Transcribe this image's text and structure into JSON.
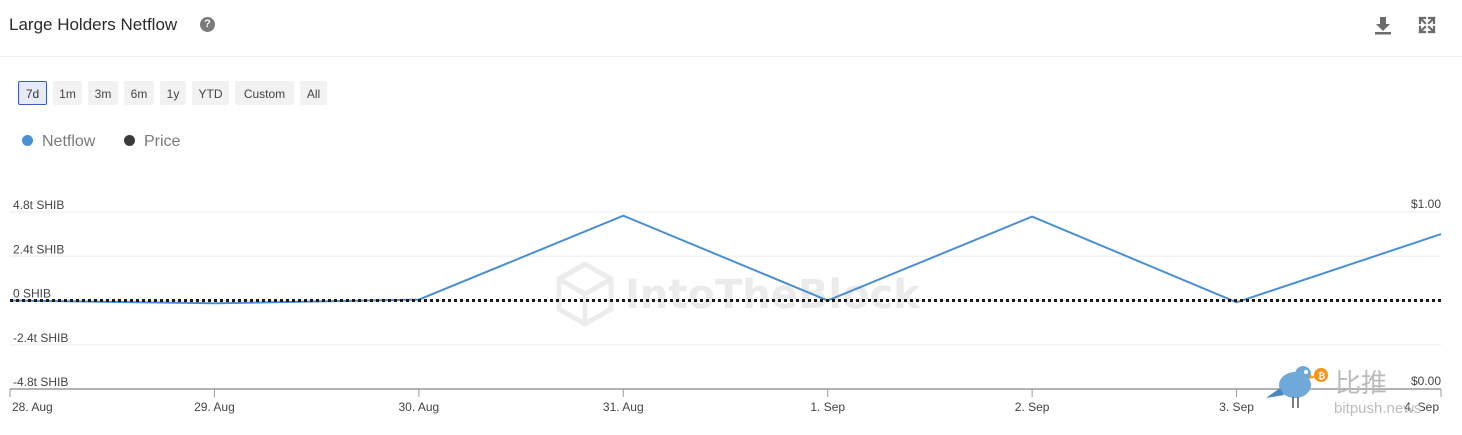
{
  "header": {
    "title": "Large Holders Netflow",
    "help_icon": "question-circle-icon",
    "download_icon": "download-icon",
    "expand_icon": "expand-icon"
  },
  "range_buttons": [
    {
      "label": "7d",
      "active": true
    },
    {
      "label": "1m",
      "active": false
    },
    {
      "label": "3m",
      "active": false
    },
    {
      "label": "6m",
      "active": false
    },
    {
      "label": "1y",
      "active": false
    },
    {
      "label": "YTD",
      "active": false
    },
    {
      "label": "Custom",
      "active": false
    },
    {
      "label": "All",
      "active": false
    }
  ],
  "legend": [
    {
      "name": "Netflow",
      "color": "#4a8fd4"
    },
    {
      "name": "Price",
      "color": "#3a3a3a"
    }
  ],
  "watermark": {
    "text": "IntoTheBlock"
  },
  "branding": {
    "cn": "比推",
    "en": "bitpush.news"
  },
  "chart_data": {
    "type": "line",
    "x": [
      "28. Aug",
      "29. Aug",
      "30. Aug",
      "31. Aug",
      "1. Sep",
      "2. Sep",
      "3. Sep",
      "4. Sep"
    ],
    "y_left": {
      "ticks": [
        "4.8t SHIB",
        "2.4t SHIB",
        "0 SHIB",
        "-2.4t SHIB",
        "-4.8t SHIB"
      ],
      "tick_values": [
        4.8,
        2.4,
        0,
        -2.4,
        -4.8
      ],
      "range": [
        -4.8,
        4.8
      ],
      "unit": "t SHIB"
    },
    "y_right": {
      "ticks": [
        "$1.00",
        "$0.00"
      ],
      "range": [
        0,
        1
      ]
    },
    "series": [
      {
        "name": "Netflow",
        "color": "#4a8fd4",
        "axis": "left",
        "points": [
          [
            0,
            0.0
          ],
          [
            1,
            -0.15
          ],
          [
            2,
            0.05
          ],
          [
            3,
            4.6
          ],
          [
            4,
            0.0
          ],
          [
            5,
            4.55
          ],
          [
            6,
            -0.1
          ],
          [
            7,
            3.6
          ]
        ]
      },
      {
        "name": "Price",
        "color": "#1a1a1a",
        "axis": "right",
        "style": "dotted",
        "points": [
          [
            0,
            0.5
          ],
          [
            7,
            0.5
          ]
        ]
      }
    ],
    "grid": true,
    "legend_position": "top-left"
  }
}
